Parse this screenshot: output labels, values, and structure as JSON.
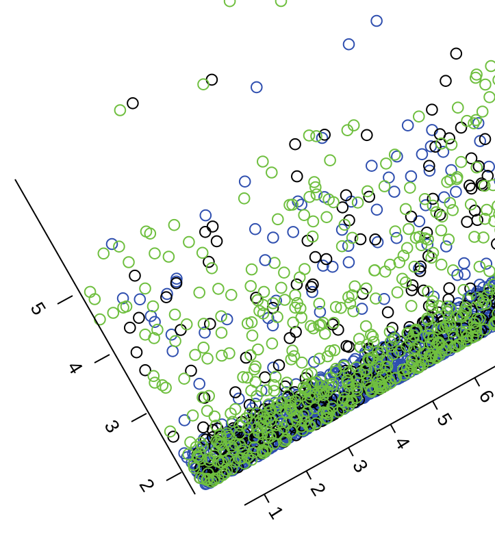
{
  "chart_data": {
    "type": "scatter",
    "view": "rotated, cropped 3-D scatter",
    "x_ticks": [
      "1",
      "2",
      "3",
      "4",
      "5",
      "6"
    ],
    "y_ticks": [
      "2",
      "3",
      "4",
      "5"
    ],
    "series": [
      {
        "color": "#2f4faf",
        "outliers": [
          [
            3.8,
            2.4
          ],
          [
            7.0,
            0.55
          ],
          [
            7.0,
            0.9
          ],
          [
            7.25,
            1.0
          ],
          [
            5.6,
            4.6
          ],
          [
            8.45,
            4.6
          ],
          [
            7.7,
            4.5
          ]
        ]
      },
      {
        "color": "#000000",
        "outliers": [
          [
            3.25,
            5.25
          ],
          [
            6.45,
            5.85
          ],
          [
            4.9,
            5.0
          ],
          [
            7.35,
            5.5
          ],
          [
            5.95,
            2.65
          ],
          [
            10.15,
            6.9
          ],
          [
            8.6,
            2.1
          ]
        ]
      },
      {
        "color": "#6fbf3f",
        "outliers": [
          [
            2.95,
            5.25
          ],
          [
            6.1,
            5.85
          ],
          [
            4.7,
            5.0
          ],
          [
            7.0,
            5.5
          ],
          [
            5.65,
            2.65
          ],
          [
            9.65,
            6.9
          ],
          [
            8.55,
            2.1
          ]
        ]
      }
    ],
    "point_density": {
      "dense_area": 1700,
      "background": 480,
      "spikes": 220
    },
    "xlabel": "",
    "ylabel": "",
    "grid": false,
    "legend": false
  }
}
